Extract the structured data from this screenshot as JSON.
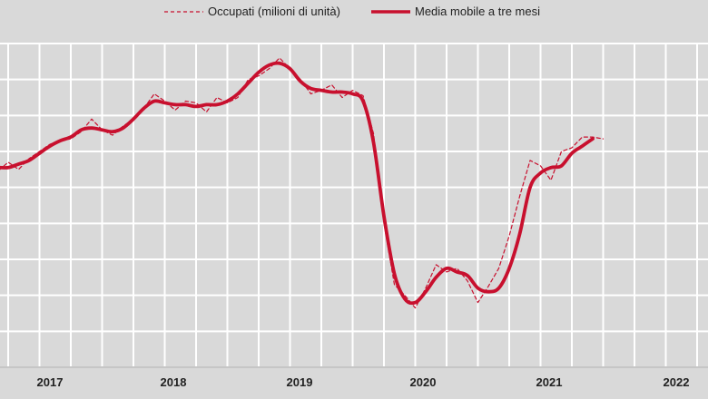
{
  "chart_data": {
    "type": "line",
    "legend_position": "top-center",
    "grid": true,
    "x_ticks": [
      "2017",
      "2018",
      "2019",
      "2020",
      "2021",
      "2022"
    ],
    "series": [
      {
        "name": "Occupati (milioni di unità)",
        "style": "dashed",
        "color": "#c8102e",
        "values": [
          {
            "x": "2016-07",
            "y": 22.71
          },
          {
            "x": "2016-08",
            "y": 22.69
          },
          {
            "x": "2016-09",
            "y": 22.74
          },
          {
            "x": "2016-10",
            "y": 22.7
          },
          {
            "x": "2016-11",
            "y": 22.76
          },
          {
            "x": "2016-12",
            "y": 22.8
          },
          {
            "x": "2017-01",
            "y": 22.84
          },
          {
            "x": "2017-02",
            "y": 22.86
          },
          {
            "x": "2017-03",
            "y": 22.87
          },
          {
            "x": "2017-04",
            "y": 22.91
          },
          {
            "x": "2017-05",
            "y": 22.98
          },
          {
            "x": "2017-06",
            "y": 22.92
          },
          {
            "x": "2017-07",
            "y": 22.89
          },
          {
            "x": "2017-08",
            "y": 22.94
          },
          {
            "x": "2017-09",
            "y": 22.98
          },
          {
            "x": "2017-10",
            "y": 23.04
          },
          {
            "x": "2017-11",
            "y": 23.12
          },
          {
            "x": "2017-12",
            "y": 23.08
          },
          {
            "x": "2018-01",
            "y": 23.03
          },
          {
            "x": "2018-02",
            "y": 23.08
          },
          {
            "x": "2018-03",
            "y": 23.07
          },
          {
            "x": "2018-04",
            "y": 23.02
          },
          {
            "x": "2018-05",
            "y": 23.1
          },
          {
            "x": "2018-06",
            "y": 23.07
          },
          {
            "x": "2018-07",
            "y": 23.1
          },
          {
            "x": "2018-08",
            "y": 23.2
          },
          {
            "x": "2018-09",
            "y": 23.22
          },
          {
            "x": "2018-10",
            "y": 23.26
          },
          {
            "x": "2018-11",
            "y": 23.32
          },
          {
            "x": "2018-12",
            "y": 23.26
          },
          {
            "x": "2019-01",
            "y": 23.2
          },
          {
            "x": "2019-02",
            "y": 23.12
          },
          {
            "x": "2019-03",
            "y": 23.14
          },
          {
            "x": "2019-04",
            "y": 23.17
          },
          {
            "x": "2019-05",
            "y": 23.1
          },
          {
            "x": "2019-06",
            "y": 23.14
          },
          {
            "x": "2019-07",
            "y": 23.11
          },
          {
            "x": "2019-08",
            "y": 22.9
          },
          {
            "x": "2019-09",
            "y": 22.4
          },
          {
            "x": "2019-10",
            "y": 22.06
          },
          {
            "x": "2019-11",
            "y": 22.0
          },
          {
            "x": "2019-12",
            "y": 21.93
          },
          {
            "x": "2020-01",
            "y": 22.04
          },
          {
            "x": "2020-02",
            "y": 22.17
          },
          {
            "x": "2020-03",
            "y": 22.13
          },
          {
            "x": "2020-04",
            "y": 22.15
          },
          {
            "x": "2020-05",
            "y": 22.08
          },
          {
            "x": "2020-06",
            "y": 21.96
          },
          {
            "x": "2020-07",
            "y": 22.05
          },
          {
            "x": "2020-08",
            "y": 22.15
          },
          {
            "x": "2020-09",
            "y": 22.33
          },
          {
            "x": "2020-10",
            "y": 22.55
          },
          {
            "x": "2020-11",
            "y": 22.75
          },
          {
            "x": "2020-12",
            "y": 22.72
          },
          {
            "x": "2021-01",
            "y": 22.64
          },
          {
            "x": "2021-02",
            "y": 22.8
          },
          {
            "x": "2021-03",
            "y": 22.82
          },
          {
            "x": "2021-04",
            "y": 22.88
          },
          {
            "x": "2021-05",
            "y": 22.88
          },
          {
            "x": "2021-06",
            "y": 22.87
          }
        ]
      },
      {
        "name": "Media mobile a tre mesi",
        "style": "solid",
        "color": "#c8102e",
        "values": [
          {
            "x": "2016-07",
            "y": 22.7
          },
          {
            "x": "2016-08",
            "y": 22.71
          },
          {
            "x": "2016-09",
            "y": 22.71
          },
          {
            "x": "2016-10",
            "y": 22.73
          },
          {
            "x": "2016-11",
            "y": 22.75
          },
          {
            "x": "2016-12",
            "y": 22.79
          },
          {
            "x": "2017-01",
            "y": 22.83
          },
          {
            "x": "2017-02",
            "y": 22.86
          },
          {
            "x": "2017-03",
            "y": 22.88
          },
          {
            "x": "2017-04",
            "y": 22.92
          },
          {
            "x": "2017-05",
            "y": 22.93
          },
          {
            "x": "2017-06",
            "y": 22.92
          },
          {
            "x": "2017-07",
            "y": 22.91
          },
          {
            "x": "2017-08",
            "y": 22.93
          },
          {
            "x": "2017-09",
            "y": 22.98
          },
          {
            "x": "2017-10",
            "y": 23.04
          },
          {
            "x": "2017-11",
            "y": 23.08
          },
          {
            "x": "2017-12",
            "y": 23.07
          },
          {
            "x": "2018-01",
            "y": 23.06
          },
          {
            "x": "2018-02",
            "y": 23.06
          },
          {
            "x": "2018-03",
            "y": 23.05
          },
          {
            "x": "2018-04",
            "y": 23.06
          },
          {
            "x": "2018-05",
            "y": 23.06
          },
          {
            "x": "2018-06",
            "y": 23.08
          },
          {
            "x": "2018-07",
            "y": 23.12
          },
          {
            "x": "2018-08",
            "y": 23.18
          },
          {
            "x": "2018-09",
            "y": 23.24
          },
          {
            "x": "2018-10",
            "y": 23.28
          },
          {
            "x": "2018-11",
            "y": 23.29
          },
          {
            "x": "2018-12",
            "y": 23.26
          },
          {
            "x": "2019-01",
            "y": 23.19
          },
          {
            "x": "2019-02",
            "y": 23.15
          },
          {
            "x": "2019-03",
            "y": 23.14
          },
          {
            "x": "2019-04",
            "y": 23.13
          },
          {
            "x": "2019-05",
            "y": 23.13
          },
          {
            "x": "2019-06",
            "y": 23.12
          },
          {
            "x": "2019-07",
            "y": 23.08
          },
          {
            "x": "2019-08",
            "y": 22.85
          },
          {
            "x": "2019-09",
            "y": 22.44
          },
          {
            "x": "2019-10",
            "y": 22.12
          },
          {
            "x": "2019-11",
            "y": 21.98
          },
          {
            "x": "2019-12",
            "y": 21.96
          },
          {
            "x": "2020-01",
            "y": 22.02
          },
          {
            "x": "2020-02",
            "y": 22.1
          },
          {
            "x": "2020-03",
            "y": 22.15
          },
          {
            "x": "2020-04",
            "y": 22.13
          },
          {
            "x": "2020-05",
            "y": 22.11
          },
          {
            "x": "2020-06",
            "y": 22.04
          },
          {
            "x": "2020-07",
            "y": 22.02
          },
          {
            "x": "2020-08",
            "y": 22.04
          },
          {
            "x": "2020-09",
            "y": 22.15
          },
          {
            "x": "2020-10",
            "y": 22.34
          },
          {
            "x": "2020-11",
            "y": 22.6
          },
          {
            "x": "2020-12",
            "y": 22.68
          },
          {
            "x": "2021-01",
            "y": 22.71
          },
          {
            "x": "2021-02",
            "y": 22.72
          },
          {
            "x": "2021-03",
            "y": 22.79
          },
          {
            "x": "2021-04",
            "y": 22.83
          },
          {
            "x": "2021-05",
            "y": 22.87
          }
        ]
      }
    ]
  }
}
